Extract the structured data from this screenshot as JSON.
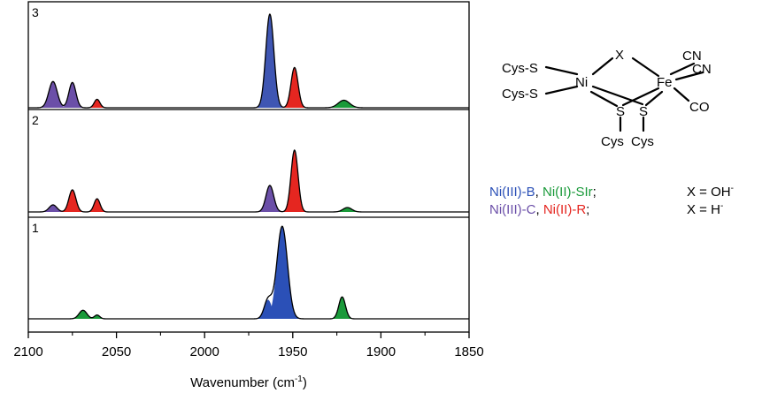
{
  "chart_data": {
    "type": "area",
    "xlabel": "Wavenumber (cm",
    "xlabel_sup": "-1",
    "xlabel_close": ")",
    "xlim": [
      2100,
      1850
    ],
    "x_reversed": true,
    "xticks": [
      {
        "value": 2100,
        "label": "2100"
      },
      {
        "value": 2050,
        "label": "2050"
      },
      {
        "value": 2000,
        "label": "2000"
      },
      {
        "value": 1950,
        "label": "1950"
      },
      {
        "value": 1900,
        "label": "1900"
      },
      {
        "value": 1850,
        "label": "1850"
      }
    ],
    "panels": [
      {
        "label": "3",
        "peaks": [
          {
            "x": 2086,
            "height": 0.28,
            "width": 2.4,
            "color": "#6b4fa8"
          },
          {
            "x": 2075,
            "height": 0.27,
            "width": 2.0,
            "color": "#6b4fa8"
          },
          {
            "x": 2061,
            "height": 0.09,
            "width": 1.6,
            "color": "#e52620"
          },
          {
            "x": 1963,
            "height": 1.0,
            "width": 2.3,
            "color": "#3f56b3"
          },
          {
            "x": 1949,
            "height": 0.43,
            "width": 2.0,
            "color": "#e52620"
          },
          {
            "x": 1921,
            "height": 0.08,
            "width": 3.2,
            "color": "#1a9a3a"
          }
        ]
      },
      {
        "label": "2",
        "peaks": [
          {
            "x": 2086,
            "height": 0.08,
            "width": 2.2,
            "color": "#6b4fa8"
          },
          {
            "x": 2075,
            "height": 0.25,
            "width": 2.0,
            "color": "#e52620"
          },
          {
            "x": 2061,
            "height": 0.15,
            "width": 1.7,
            "color": "#e52620"
          },
          {
            "x": 1963,
            "height": 0.3,
            "width": 2.2,
            "color": "#6b4fa8"
          },
          {
            "x": 1949,
            "height": 0.7,
            "width": 2.0,
            "color": "#e52620"
          },
          {
            "x": 1919,
            "height": 0.05,
            "width": 2.5,
            "color": "#1a9a3a"
          }
        ]
      },
      {
        "label": "1",
        "peaks": [
          {
            "x": 2069,
            "height": 0.09,
            "width": 2.2,
            "color": "#1a9a3a"
          },
          {
            "x": 2061,
            "height": 0.04,
            "width": 1.5,
            "color": "#1a9a3a"
          },
          {
            "x": 1956,
            "height": 0.97,
            "width": 3.0,
            "color": "#2b50b7"
          },
          {
            "x": 1964,
            "height": 0.2,
            "width": 2.2,
            "color": "#2b50b7"
          },
          {
            "x": 1922,
            "height": 0.23,
            "width": 1.9,
            "color": "#1a9a3a"
          }
        ]
      }
    ]
  },
  "structure": {
    "cys_s_top": "Cys-S",
    "cys_s_bottom": "Cys-S",
    "ni": "Ni",
    "x": "X",
    "fe": "Fe",
    "cn1": "CN",
    "cn2": "CN",
    "co": "CO",
    "s_left": "S",
    "s_right": "S",
    "cys_left": "Cys",
    "cys_right": "Cys"
  },
  "legend": {
    "row1": {
      "a": "Ni(III)-B",
      "a_color": "#2b50b7",
      "sep": ", ",
      "b": "Ni(II)-SIr",
      "b_color": "#1a9a3a",
      "end": ";",
      "x_eq": "X = OH",
      "x_sup": "-"
    },
    "row2": {
      "a": "Ni(III)-C",
      "a_color": "#6b4fa8",
      "sep": ", ",
      "b": "Ni(II)-R",
      "b_color": "#e52620",
      "end": ";",
      "x_eq": "X = H",
      "x_sup": "-"
    }
  }
}
